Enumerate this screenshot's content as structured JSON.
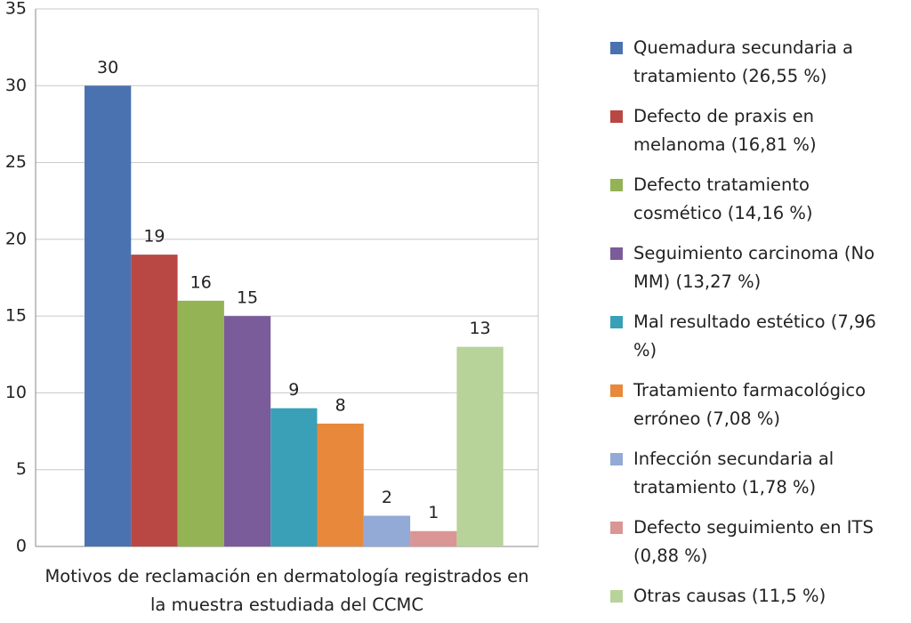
{
  "chart_data": {
    "type": "bar",
    "categories": [
      "Motivos de reclamación en dermatología registrados en la muestra estudiada del CCMC"
    ],
    "series": [
      {
        "name": "Quemadura secundaria a tratamiento (26,55 %)",
        "color": "#4a72b0",
        "values": [
          30
        ]
      },
      {
        "name": "Defecto de praxis en melanoma (16,81 %)",
        "color": "#b94744",
        "values": [
          19
        ]
      },
      {
        "name": "Defecto tratamiento cosmético (14,16 %)",
        "color": "#93b354",
        "values": [
          16
        ]
      },
      {
        "name": "Seguimiento carcinoma (No MM) (13,27 %)",
        "color": "#7a5c9a",
        "values": [
          15
        ]
      },
      {
        "name": "Mal resultado estético (7,96 %)",
        "color": "#3aa0b8",
        "values": [
          9
        ]
      },
      {
        "name": "Tratamiento farmacológico erróneo (7,08 %)",
        "color": "#e8883a",
        "values": [
          8
        ]
      },
      {
        "name": "Infección secundaria al tratamiento (1,78 %)",
        "color": "#93a9d6",
        "values": [
          2
        ]
      },
      {
        "name": "Defecto seguimiento en ITS (0,88 %)",
        "color": "#d99694",
        "values": [
          1
        ]
      },
      {
        "name": "Otras causas (11,5 %)",
        "color": "#b8d39a",
        "values": [
          13
        ]
      }
    ],
    "ylim": [
      0,
      35
    ],
    "yticks": [
      0,
      5,
      10,
      15,
      20,
      25,
      30,
      35
    ],
    "grid": true,
    "legend": "right"
  }
}
